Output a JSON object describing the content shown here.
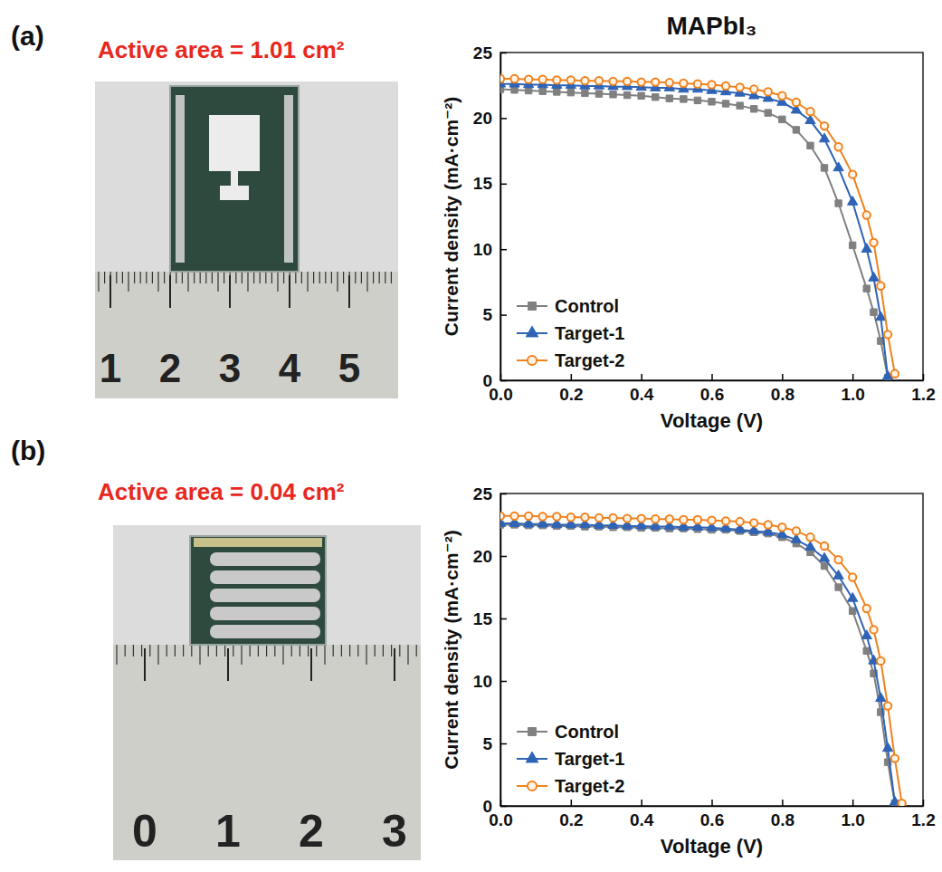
{
  "chart_data": [
    {
      "type": "line",
      "panel": "(a)",
      "title": "MAPbI₃",
      "annotations": [
        "Active area = 1.01 cm²"
      ],
      "ruler_labels": [
        "1",
        "2",
        "3",
        "4",
        "5"
      ],
      "x_label": "Voltage (V)",
      "y_label": "Current density (mA·cm⁻²)",
      "x": [
        0,
        0.04,
        0.08,
        0.12,
        0.16,
        0.2,
        0.24,
        0.28,
        0.32,
        0.36,
        0.4,
        0.44,
        0.48,
        0.52,
        0.56,
        0.6,
        0.64,
        0.68,
        0.72,
        0.76,
        0.8,
        0.84,
        0.88,
        0.92,
        0.96,
        1,
        1.04,
        1.06,
        1.08,
        1.1,
        1.12
      ],
      "xlim": [
        0,
        1.2
      ],
      "xticks": [
        {
          "value": 0,
          "label": "0.0"
        },
        0.2,
        0.4,
        0.6,
        0.8,
        {
          "value": 1,
          "label": "1.0"
        },
        1.2
      ],
      "ylim": [
        0,
        25
      ],
      "yticks": [
        0,
        5,
        10,
        15,
        20,
        25
      ],
      "grid": false,
      "legend": "lower left",
      "series": [
        {
          "name": "Control",
          "color": "#808080",
          "marker": "square",
          "values": [
            22.2,
            22.15,
            22.1,
            22.05,
            22.0,
            21.95,
            21.9,
            21.85,
            21.8,
            21.75,
            21.7,
            21.6,
            21.5,
            21.45,
            21.35,
            21.25,
            21.1,
            20.95,
            20.7,
            20.4,
            19.9,
            19.1,
            17.9,
            16.2,
            13.5,
            10.3,
            7.0,
            5.2,
            3.0,
            0.2,
            null
          ]
        },
        {
          "name": "Target-1",
          "color": "#2f63b5",
          "marker": "triangle",
          "values": [
            22.6,
            22.6,
            22.55,
            22.55,
            22.5,
            22.5,
            22.45,
            22.45,
            22.4,
            22.4,
            22.35,
            22.3,
            22.3,
            22.2,
            22.2,
            22.1,
            22.0,
            21.9,
            21.7,
            21.5,
            21.2,
            20.6,
            19.8,
            18.4,
            16.2,
            13.6,
            10.0,
            7.8,
            4.8,
            0.3,
            null
          ]
        },
        {
          "name": "Target-2",
          "color": "#f0821e",
          "marker": "circle",
          "values": [
            23.0,
            23.0,
            22.95,
            22.95,
            22.9,
            22.9,
            22.85,
            22.85,
            22.8,
            22.8,
            22.75,
            22.75,
            22.7,
            22.65,
            22.6,
            22.55,
            22.45,
            22.35,
            22.2,
            22.0,
            21.7,
            21.2,
            20.5,
            19.4,
            17.8,
            15.7,
            12.6,
            10.5,
            7.2,
            3.5,
            0.5
          ]
        }
      ]
    },
    {
      "type": "line",
      "panel": "(b)",
      "annotations": [
        "Active area = 0.04 cm²"
      ],
      "ruler_labels": [
        "0",
        "1",
        "2",
        "3"
      ],
      "x_label": "Voltage (V)",
      "y_label": "Current density (mA·cm⁻²)",
      "x": [
        0,
        0.04,
        0.08,
        0.12,
        0.16,
        0.2,
        0.24,
        0.28,
        0.32,
        0.36,
        0.4,
        0.44,
        0.48,
        0.52,
        0.56,
        0.6,
        0.64,
        0.68,
        0.72,
        0.76,
        0.8,
        0.84,
        0.88,
        0.92,
        0.96,
        1,
        1.04,
        1.06,
        1.08,
        1.1,
        1.12,
        1.14
      ],
      "xlim": [
        0,
        1.2
      ],
      "xticks": [
        {
          "value": 0,
          "label": "0.0"
        },
        0.2,
        0.4,
        0.6,
        0.8,
        {
          "value": 1,
          "label": "1.0"
        },
        1.2
      ],
      "ylim": [
        0,
        25
      ],
      "yticks": [
        0,
        5,
        10,
        15,
        20,
        25
      ],
      "grid": false,
      "legend": "lower left",
      "series": [
        {
          "name": "Control",
          "color": "#808080",
          "marker": "square",
          "values": [
            22.5,
            22.5,
            22.45,
            22.45,
            22.4,
            22.4,
            22.35,
            22.35,
            22.3,
            22.3,
            22.25,
            22.25,
            22.2,
            22.2,
            22.15,
            22.1,
            22.1,
            22.0,
            21.9,
            21.8,
            21.5,
            21.0,
            20.3,
            19.2,
            17.5,
            15.6,
            12.4,
            10.6,
            7.5,
            3.5,
            0.2,
            null
          ]
        },
        {
          "name": "Target-1",
          "color": "#2f63b5",
          "marker": "triangle",
          "values": [
            22.6,
            22.6,
            22.55,
            22.55,
            22.5,
            22.5,
            22.5,
            22.45,
            22.45,
            22.4,
            22.4,
            22.35,
            22.35,
            22.3,
            22.3,
            22.25,
            22.2,
            22.1,
            22.0,
            21.9,
            21.7,
            21.3,
            20.7,
            19.8,
            18.4,
            16.6,
            13.6,
            11.6,
            8.6,
            4.6,
            0.3,
            null
          ]
        },
        {
          "name": "Target-2",
          "color": "#f0821e",
          "marker": "circle",
          "values": [
            23.2,
            23.2,
            23.2,
            23.15,
            23.15,
            23.1,
            23.1,
            23.05,
            23.05,
            23.0,
            23.0,
            22.95,
            22.95,
            22.9,
            22.9,
            22.85,
            22.8,
            22.75,
            22.65,
            22.5,
            22.3,
            22.0,
            21.5,
            20.8,
            19.7,
            18.3,
            15.8,
            14.1,
            11.6,
            8.0,
            3.8,
            0.2
          ]
        }
      ]
    }
  ]
}
